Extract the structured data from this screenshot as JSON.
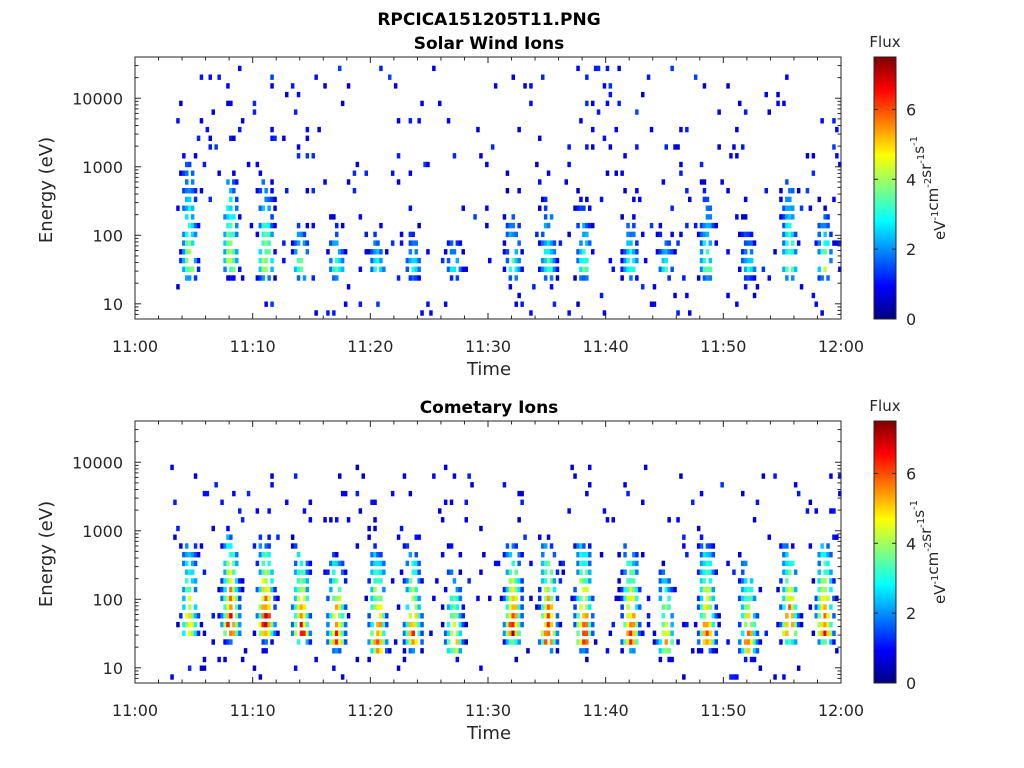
{
  "figure_title": "RPCICA151205T11.PNG",
  "colors": {
    "colormap": [
      "#00007f",
      "#0000ff",
      "#007fff",
      "#00ffff",
      "#7fff7f",
      "#ffff00",
      "#ff7f00",
      "#ff0000",
      "#7f0000"
    ],
    "axis": "#262626",
    "background": "#ffffff"
  },
  "chart_data": [
    {
      "type": "heatmap",
      "title": "Solar Wind Ions",
      "xlabel": "Time",
      "ylabel": "Energy (eV)",
      "yscale": "log",
      "xlim": [
        "11:00",
        "12:00"
      ],
      "ylim": [
        6,
        40000
      ],
      "x_ticks": [
        "11:00",
        "11:10",
        "11:20",
        "11:30",
        "11:40",
        "11:50",
        "12:00"
      ],
      "y_ticks": [
        10,
        100,
        1000,
        10000
      ],
      "y_tick_labels": [
        "10",
        "100",
        "1000",
        "10000"
      ],
      "grid": false,
      "colorbar": {
        "title": "Flux",
        "label_parts": [
          "eV",
          "-1",
          "cm",
          "-2",
          "sr",
          "-1",
          "s",
          "-1"
        ],
        "range": [
          0,
          7.5
        ],
        "ticks": [
          0,
          2,
          4,
          6
        ],
        "tick_labels": [
          "0",
          "2",
          "4",
          "6"
        ]
      },
      "data_extent": {
        "start": "11:03",
        "end": "12:00"
      },
      "bursts": [
        {
          "t": "11:04.5",
          "peak_energy": 30,
          "top_energy": 800,
          "peak_flux": 4
        },
        {
          "t": "11:08",
          "peak_energy": 35,
          "top_energy": 500,
          "peak_flux": 4.5
        },
        {
          "t": "11:11",
          "peak_energy": 30,
          "top_energy": 400,
          "peak_flux": 4.5
        },
        {
          "t": "11:14",
          "peak_energy": 30,
          "top_energy": 100,
          "peak_flux": 4
        },
        {
          "t": "11:17",
          "peak_energy": 30,
          "top_energy": 100,
          "peak_flux": 3.5
        },
        {
          "t": "11:20.5",
          "peak_energy": 30,
          "top_energy": 100,
          "peak_flux": 3
        },
        {
          "t": "11:23.5",
          "peak_energy": 30,
          "top_energy": 100,
          "peak_flux": 3
        },
        {
          "t": "11:27",
          "peak_energy": 30,
          "top_energy": 80,
          "peak_flux": 3
        },
        {
          "t": "11:32",
          "peak_energy": 30,
          "top_energy": 200,
          "peak_flux": 3.5
        },
        {
          "t": "11:35",
          "peak_energy": 30,
          "top_energy": 250,
          "peak_flux": 3.5
        },
        {
          "t": "11:38",
          "peak_energy": 30,
          "top_energy": 200,
          "peak_flux": 3.5
        },
        {
          "t": "11:42",
          "peak_energy": 30,
          "top_energy": 120,
          "peak_flux": 3.5
        },
        {
          "t": "11:45",
          "peak_energy": 30,
          "top_energy": 100,
          "peak_flux": 3
        },
        {
          "t": "11:48.5",
          "peak_energy": 30,
          "top_energy": 300,
          "peak_flux": 3.5
        },
        {
          "t": "11:52",
          "peak_energy": 30,
          "top_energy": 100,
          "peak_flux": 3
        },
        {
          "t": "11:55.5",
          "peak_energy": 30,
          "top_energy": 400,
          "peak_flux": 4
        },
        {
          "t": "11:58.5",
          "peak_energy": 30,
          "top_energy": 150,
          "peak_flux": 4
        }
      ],
      "background": {
        "low_energy_min": 6,
        "high_energy_max": 30000,
        "flux": 0.6
      }
    },
    {
      "type": "heatmap",
      "title": "Cometary Ions",
      "xlabel": "Time",
      "ylabel": "Energy (eV)",
      "yscale": "log",
      "xlim": [
        "11:00",
        "12:00"
      ],
      "ylim": [
        6,
        40000
      ],
      "x_ticks": [
        "11:00",
        "11:10",
        "11:20",
        "11:30",
        "11:40",
        "11:50",
        "12:00"
      ],
      "y_ticks": [
        10,
        100,
        1000,
        10000
      ],
      "y_tick_labels": [
        "10",
        "100",
        "1000",
        "10000"
      ],
      "grid": false,
      "colorbar": {
        "title": "Flux",
        "label_parts": [
          "eV",
          "-1",
          "cm",
          "-2",
          "sr",
          "-1",
          "s",
          "-1"
        ],
        "range": [
          0,
          7.5
        ],
        "ticks": [
          0,
          2,
          4,
          6
        ],
        "tick_labels": [
          "0",
          "2",
          "4",
          "6"
        ]
      },
      "data_extent": {
        "start": "11:03",
        "end": "12:00"
      },
      "bursts": [
        {
          "t": "11:04.5",
          "peak_energy": 35,
          "top_energy": 500,
          "peak_flux": 5
        },
        {
          "t": "11:08",
          "peak_energy": 35,
          "top_energy": 500,
          "peak_flux": 7
        },
        {
          "t": "11:11",
          "peak_energy": 35,
          "top_energy": 400,
          "peak_flux": 7
        },
        {
          "t": "11:14",
          "peak_energy": 30,
          "top_energy": 300,
          "peak_flux": 6.5
        },
        {
          "t": "11:17",
          "peak_energy": 25,
          "top_energy": 250,
          "peak_flux": 6.5
        },
        {
          "t": "11:20.5",
          "peak_energy": 20,
          "top_energy": 300,
          "peak_flux": 6.5
        },
        {
          "t": "11:23.5",
          "peak_energy": 25,
          "top_energy": 300,
          "peak_flux": 6
        },
        {
          "t": "11:27",
          "peak_energy": 20,
          "top_energy": 150,
          "peak_flux": 5.5
        },
        {
          "t": "11:32",
          "peak_energy": 30,
          "top_energy": 400,
          "peak_flux": 6.5
        },
        {
          "t": "11:35",
          "peak_energy": 25,
          "top_energy": 400,
          "peak_flux": 6.5
        },
        {
          "t": "11:38",
          "peak_energy": 25,
          "top_energy": 400,
          "peak_flux": 6.5
        },
        {
          "t": "11:42",
          "peak_energy": 25,
          "top_energy": 350,
          "peak_flux": 6.5
        },
        {
          "t": "11:45",
          "peak_energy": 20,
          "top_energy": 150,
          "peak_flux": 5.5
        },
        {
          "t": "11:48.5",
          "peak_energy": 25,
          "top_energy": 400,
          "peak_flux": 6
        },
        {
          "t": "11:52",
          "peak_energy": 20,
          "top_energy": 200,
          "peak_flux": 6
        },
        {
          "t": "11:55.5",
          "peak_energy": 30,
          "top_energy": 350,
          "peak_flux": 6.5
        },
        {
          "t": "11:58.5",
          "peak_energy": 30,
          "top_energy": 400,
          "peak_flux": 6.5
        }
      ],
      "background": {
        "low_energy_min": 6,
        "high_energy_max": 10000,
        "flux": 0.5
      }
    }
  ]
}
